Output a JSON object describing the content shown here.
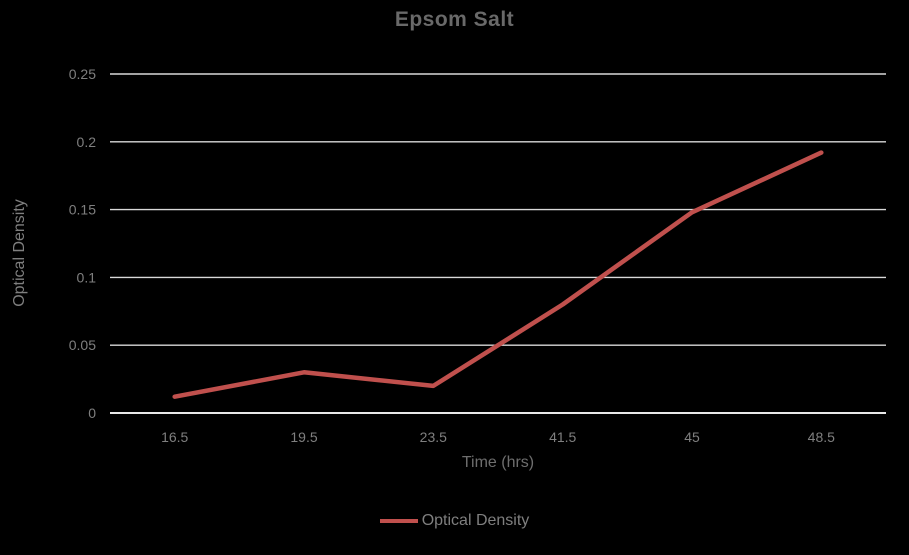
{
  "chart": {
    "title": "Epsom Salt",
    "y_axis_title": "Optical Density",
    "x_axis_title": "Time (hrs)",
    "legend_label": "Optical Density"
  },
  "chart_data": {
    "type": "line",
    "title": "Epsom Salt",
    "xlabel": "Time (hrs)",
    "ylabel": "Optical Density",
    "categories": [
      "16.5",
      "19.5",
      "23.5",
      "41.5",
      "45",
      "48.5"
    ],
    "series": [
      {
        "name": "Optical Density",
        "values": [
          0.012,
          0.03,
          0.02,
          0.08,
          0.148,
          0.192
        ]
      }
    ],
    "ylim": [
      0,
      0.25
    ],
    "yticks": [
      0,
      0.05,
      0.1,
      0.15,
      0.2,
      0.25
    ],
    "grid": true,
    "legend_position": "bottom",
    "colors": {
      "background": "#000000",
      "line": "#c0504d",
      "gridline": "#d9d9d9",
      "axis_line": "#e8e8e8",
      "title_text": "#696969",
      "label_text": "#7f7f7f",
      "axis_title_text": "#6e6e6e"
    }
  }
}
